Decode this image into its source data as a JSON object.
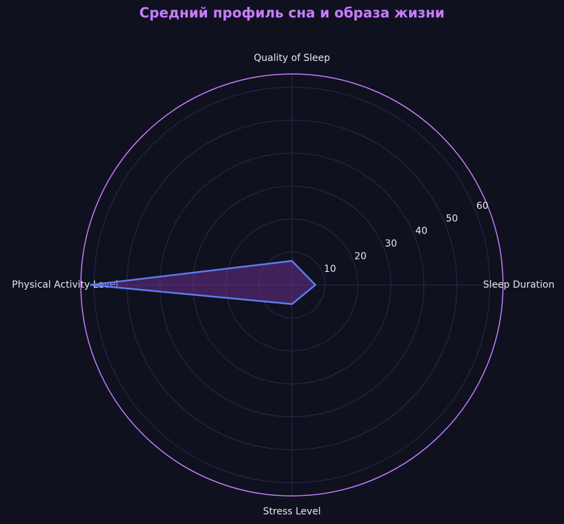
{
  "chart_data": {
    "type": "radar",
    "title": "Средний профиль сна и образа жизни",
    "categories": [
      "Sleep Duration",
      "Quality of Sleep",
      "Physical Activity Level",
      "Stress Level"
    ],
    "values": [
      7.1,
      7.3,
      61.2,
      5.8
    ],
    "color": "#5b7cf0",
    "fill_color": "#6a2f8a",
    "ylim": [
      0,
      64
    ],
    "yticks": [
      10,
      20,
      30,
      40,
      50,
      60
    ],
    "grid": true
  }
}
